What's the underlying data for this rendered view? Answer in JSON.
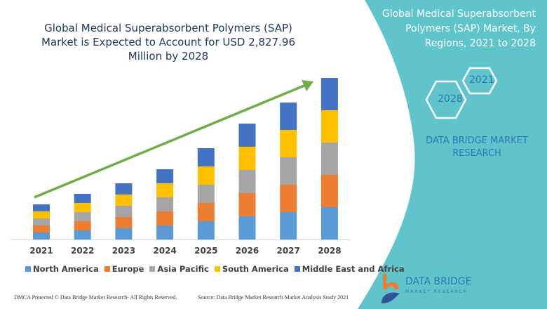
{
  "title": "Global Medical Superabsorbent Polymers (SAP) Market is Expected to Account for USD 2,827.96 Million by 2028",
  "panel": {
    "title": "Global Medical Superabsorbent Polymers (SAP) Market, By Regions, 2021 to 2028",
    "hex_start": "2021",
    "hex_end": "2028",
    "brand": "DATA BRIDGE MARKET RESEARCH",
    "color": "#5fc5cb"
  },
  "footer": {
    "copyright": "DMCA Protected © Data Bridge Market Research- All Rights Reserved.",
    "source": "Source: Data Bridge Market Research Market Analysis Study 2021",
    "logo_text": "DATA BRIDGE",
    "logo_sub": "MARKET RESEARCH"
  },
  "chart_data": {
    "type": "bar",
    "stacked": true,
    "title": "Global Medical Superabsorbent Polymers (SAP) Market is Expected to Account for USD 2,827.96 Million by 2028",
    "categories": [
      "2021",
      "2022",
      "2023",
      "2024",
      "2025",
      "2026",
      "2027",
      "2028"
    ],
    "series": [
      {
        "name": "North America",
        "color": "#5b9bd5",
        "values": [
          10,
          13,
          16,
          20,
          26,
          33,
          39,
          46
        ]
      },
      {
        "name": "Europe",
        "color": "#ed7d31",
        "values": [
          10,
          13,
          16,
          20,
          26,
          33,
          39,
          46
        ]
      },
      {
        "name": "Asia Pacific",
        "color": "#a5a5a5",
        "values": [
          10,
          13,
          16,
          20,
          26,
          33,
          39,
          46
        ]
      },
      {
        "name": "South America",
        "color": "#ffc000",
        "values": [
          10,
          13,
          16,
          20,
          26,
          33,
          39,
          46
        ]
      },
      {
        "name": "Middle East and Africa",
        "color": "#4472c4",
        "values": [
          10,
          13,
          16,
          20,
          26,
          33,
          39,
          46
        ]
      }
    ],
    "trend_arrow_color": "#70ad47",
    "legend": "bottom",
    "grid": false,
    "yaxis_visible": false
  }
}
